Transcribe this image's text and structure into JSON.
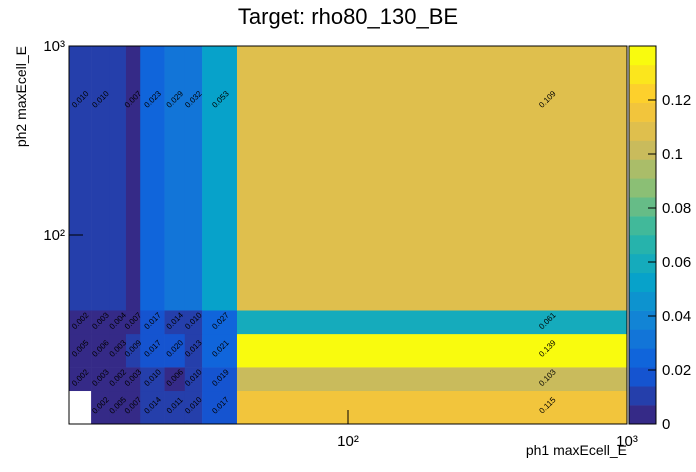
{
  "chart_data": {
    "type": "heatmap",
    "title": "Target: rho80_130_BE",
    "x_label": "ph1 maxEcell_E",
    "y_label": "ph2 maxEcell_E",
    "log_x": true,
    "log_y": true,
    "xlim": [
      10,
      1000
    ],
    "ylim": [
      10,
      1000
    ],
    "xticks": [
      {
        "value": 100,
        "label": "10²"
      },
      {
        "value": 1000,
        "label": "10³"
      }
    ],
    "yticks": [
      {
        "value": 100,
        "label": "10²"
      },
      {
        "value": 1000,
        "label": "10³"
      }
    ],
    "x_edges": [
      10,
      12,
      14,
      16,
      18,
      22,
      26,
      30,
      40,
      1000
    ],
    "y_edges": [
      10,
      15,
      20,
      30,
      40,
      1000
    ],
    "values": [
      [
        null,
        0.002,
        0.005,
        0.007,
        0.014,
        0.011,
        0.01,
        0.017,
        0.115
      ],
      [
        0.002,
        0.003,
        0.002,
        0.003,
        0.01,
        0.006,
        0.01,
        0.019,
        0.103
      ],
      [
        0.005,
        0.006,
        0.003,
        0.009,
        0.017,
        0.02,
        0.013,
        0.021,
        0.139
      ],
      [
        0.002,
        0.003,
        0.004,
        0.007,
        0.017,
        0.014,
        0.01,
        0.027,
        0.061
      ],
      [
        0.01,
        0.01,
        0.008,
        0.007,
        0.023,
        0.029,
        0.032,
        0.053,
        0.109
      ]
    ],
    "value_labels": [
      [
        null,
        "0.002",
        "0.005",
        "0.007",
        "0.014",
        "0.011",
        "0.010",
        "0.017",
        "0.115"
      ],
      [
        "0.002",
        "0.003",
        "0.002",
        "0.003",
        "0.010",
        "0.006",
        "0.010",
        "0.019",
        "0.103"
      ],
      [
        "0.005",
        "0.006",
        "0.003",
        "0.009",
        "0.017",
        "0.020",
        "0.013",
        "0.021",
        "0.139"
      ],
      [
        "0.002",
        "0.003",
        "0.004",
        "0.007",
        "0.017",
        "0.014",
        "0.010",
        "0.027",
        "0.061"
      ],
      [
        "0.010",
        "0.010",
        null,
        "0.007",
        "0.023",
        "0.029",
        "0.032",
        "0.053",
        "0.109"
      ]
    ],
    "zlim": [
      0,
      0.14
    ],
    "zticks": [
      0,
      0.02,
      0.04,
      0.06,
      0.08,
      0.1,
      0.12
    ],
    "colormap": "bird",
    "levels": 20
  }
}
